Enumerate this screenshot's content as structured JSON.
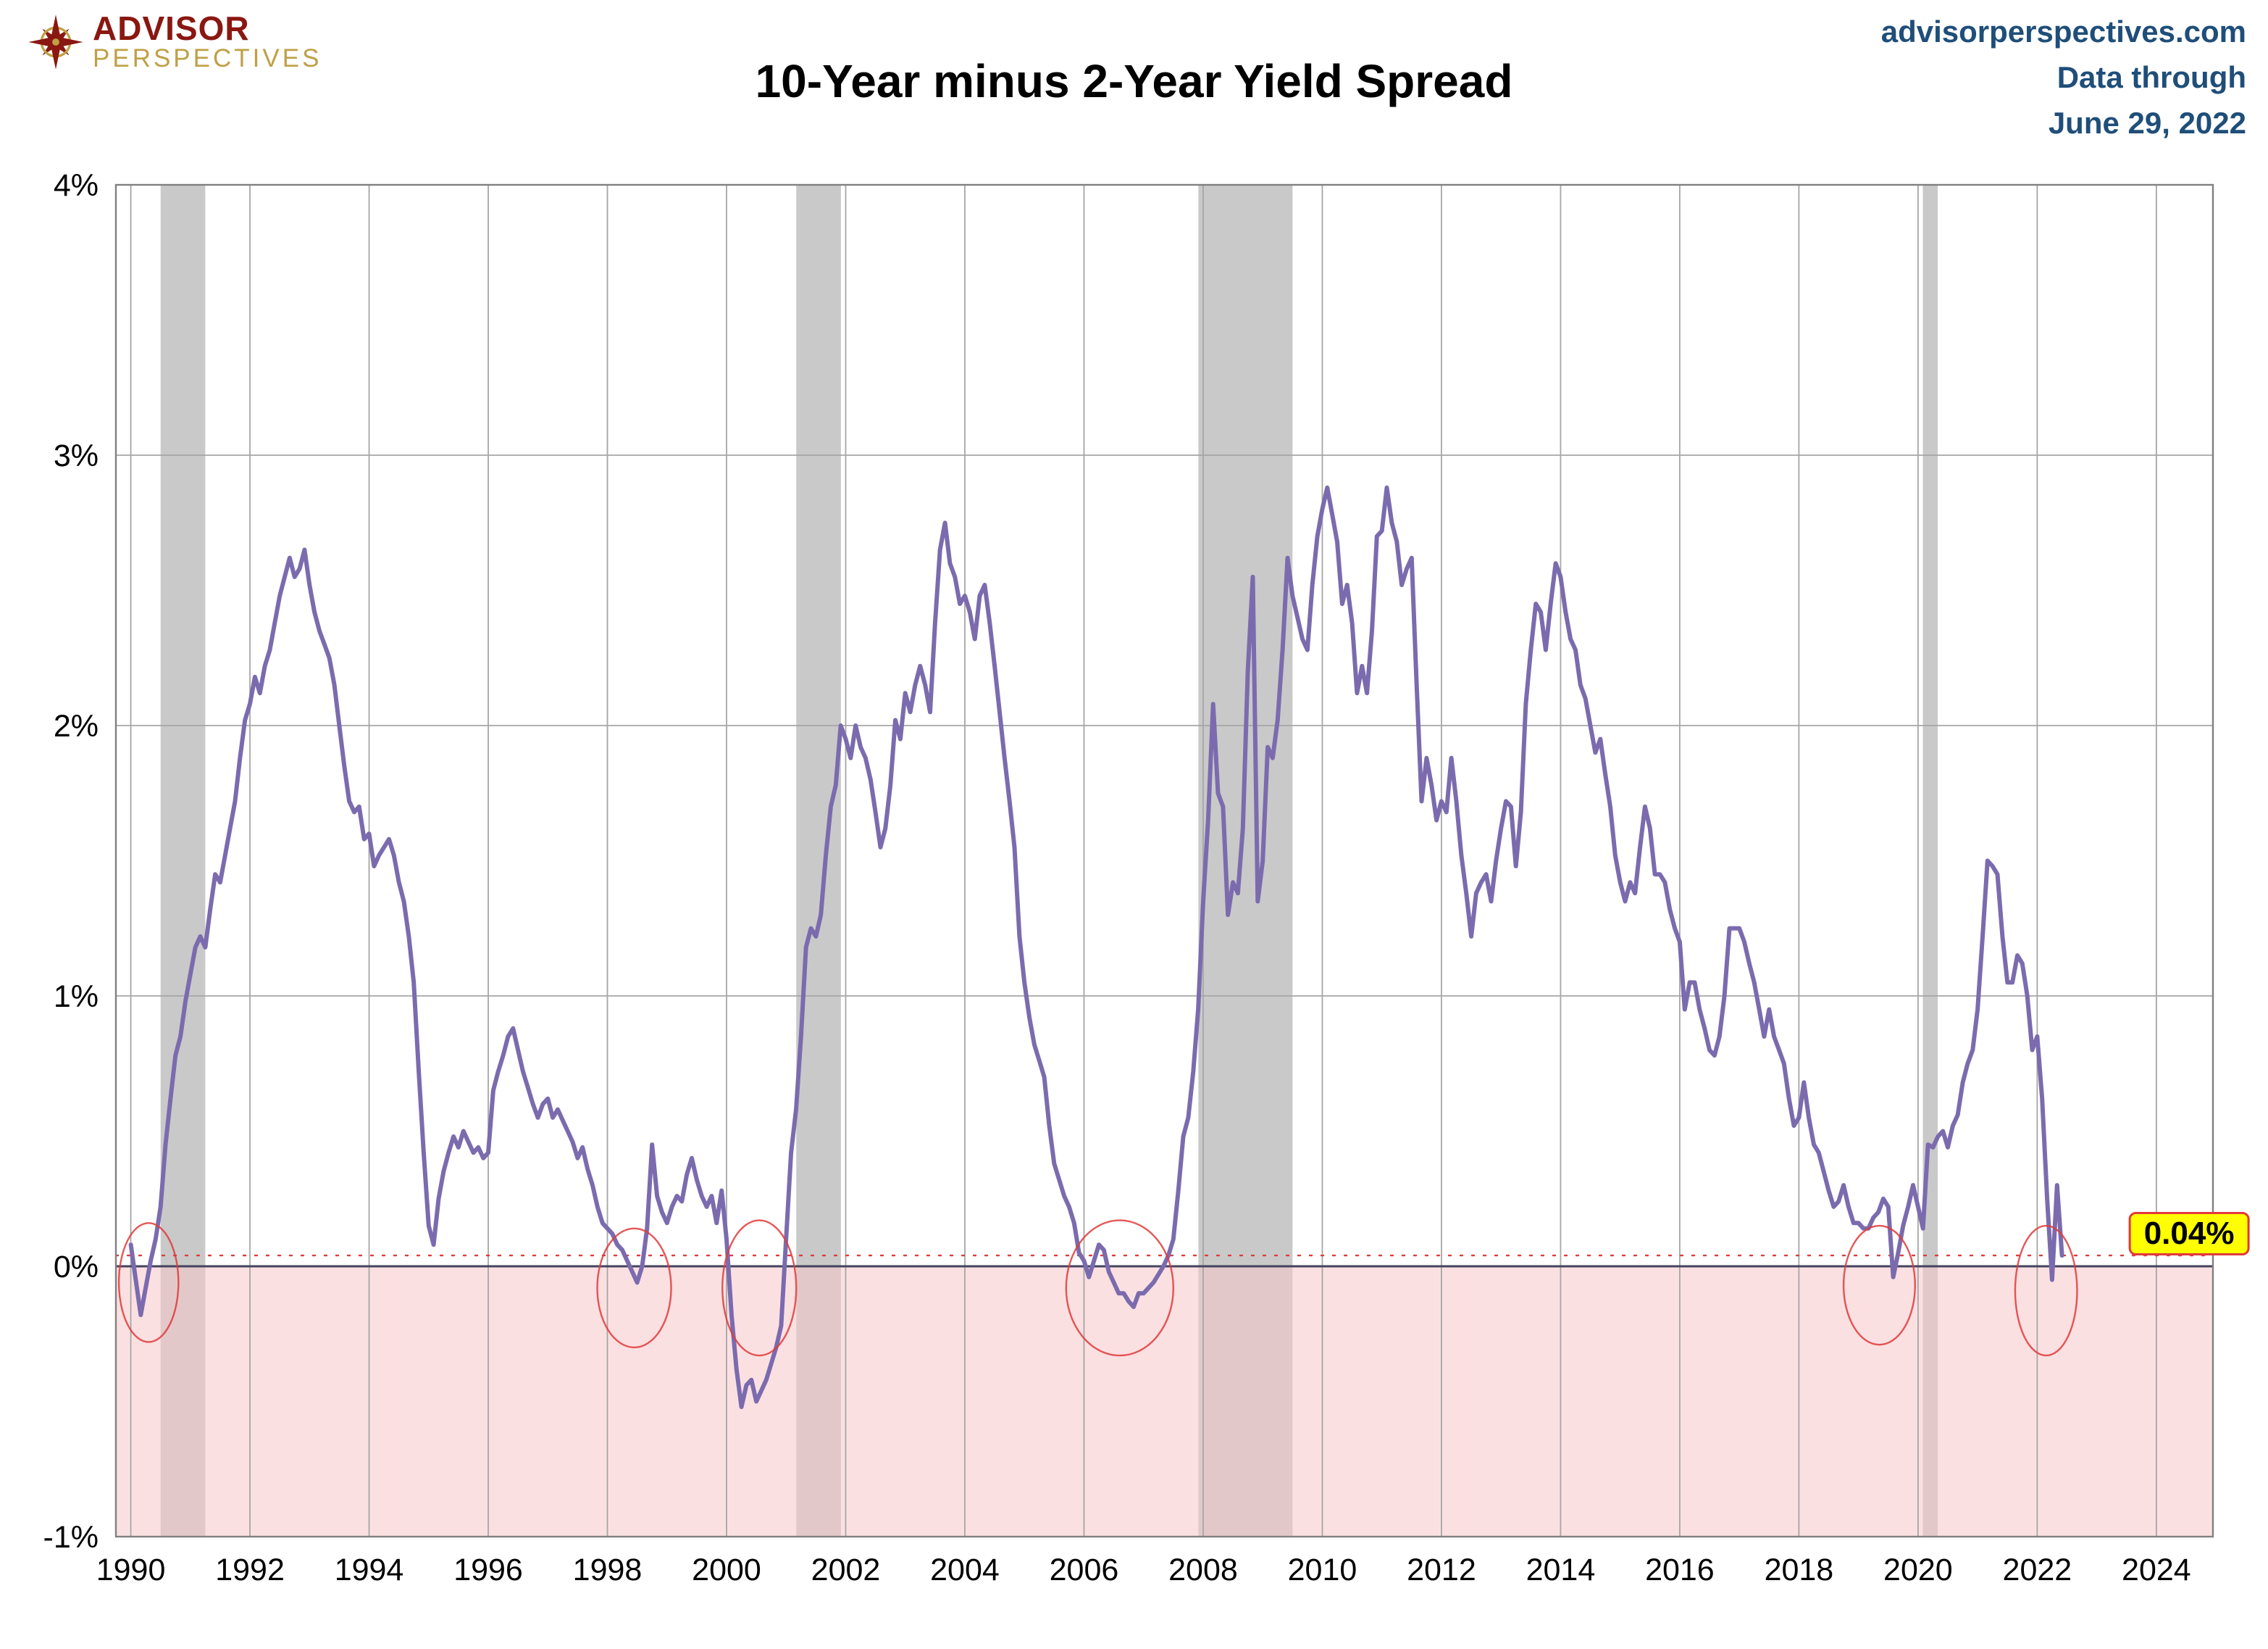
{
  "header": {
    "logo_line1": "ADVISOR",
    "logo_line2": "PERSPECTIVES",
    "title": "10-Year minus 2-Year Yield Spread",
    "site": "advisorperspectives.com",
    "data_through_label": "Data through",
    "data_through_date": "June 29, 2022"
  },
  "colors": {
    "line": "#7B6BAE",
    "negative_fill": "#F7C6CB",
    "recession": "#C9C9C9",
    "annotation_red": "#E03A3A",
    "callout_bg": "#FFFF00",
    "header_blue": "#1F4E79",
    "logo_maroon": "#8A1711",
    "logo_gold": "#BFA046",
    "grid": "#A6A6A6",
    "frame": "#808080",
    "zero_line": "#44445E",
    "tick_text": "#000000"
  },
  "chart_data": {
    "type": "line",
    "title": "10-Year minus 2-Year Yield Spread",
    "xlabel": "",
    "ylabel": "",
    "xlim": [
      1989.75,
      2024.95
    ],
    "ylim": [
      -1,
      4
    ],
    "grid": true,
    "xticks": [
      1990,
      1992,
      1994,
      1996,
      1998,
      2000,
      2002,
      2004,
      2006,
      2008,
      2010,
      2012,
      2014,
      2016,
      2018,
      2020,
      2022,
      2024
    ],
    "yticks": [
      {
        "value": 4,
        "label": "4%"
      },
      {
        "value": 3,
        "label": "3%"
      },
      {
        "value": 2,
        "label": "2%"
      },
      {
        "value": 1,
        "label": "1%"
      },
      {
        "value": 0,
        "label": "0%"
      },
      {
        "value": -1,
        "label": "-1%"
      }
    ],
    "zero_line_value": 0,
    "reference_line": {
      "value": 0.04,
      "style": "dotted"
    },
    "negative_region": {
      "from": -1,
      "to": 0
    },
    "recession_bands": [
      [
        1990.5,
        1991.25
      ],
      [
        2001.17,
        2001.92
      ],
      [
        2007.92,
        2009.5
      ],
      [
        2020.08,
        2020.33
      ]
    ],
    "inversion_circles": [
      {
        "cx": 1990.3,
        "cy": -0.06,
        "rx": 0.5,
        "ry": 0.22
      },
      {
        "cx": 1998.45,
        "cy": -0.08,
        "rx": 0.62,
        "ry": 0.22
      },
      {
        "cx": 2000.55,
        "cy": -0.08,
        "rx": 0.62,
        "ry": 0.25
      },
      {
        "cx": 2006.6,
        "cy": -0.08,
        "rx": 0.9,
        "ry": 0.25
      },
      {
        "cx": 2019.35,
        "cy": -0.07,
        "rx": 0.6,
        "ry": 0.22
      },
      {
        "cx": 2022.15,
        "cy": -0.09,
        "rx": 0.52,
        "ry": 0.24
      }
    ],
    "callout": {
      "text": "0.04%",
      "x": 2024.55,
      "y": 0.12
    },
    "last_value": 0.04,
    "series": [
      {
        "name": "10-Year minus 2-Year Treasury Yield Spread",
        "start_year": 1990,
        "points_per_year": 12,
        "values": [
          0.08,
          -0.05,
          -0.18,
          -0.08,
          0.02,
          0.1,
          0.22,
          0.45,
          0.62,
          0.78,
          0.85,
          0.98,
          1.08,
          1.18,
          1.22,
          1.18,
          1.32,
          1.45,
          1.42,
          1.52,
          1.62,
          1.72,
          1.88,
          2.02,
          2.08,
          2.18,
          2.12,
          2.22,
          2.28,
          2.38,
          2.48,
          2.55,
          2.62,
          2.55,
          2.58,
          2.65,
          2.52,
          2.42,
          2.35,
          2.3,
          2.25,
          2.15,
          2.0,
          1.85,
          1.72,
          1.68,
          1.7,
          1.58,
          1.6,
          1.48,
          1.52,
          1.55,
          1.58,
          1.52,
          1.42,
          1.35,
          1.22,
          1.05,
          0.72,
          0.42,
          0.15,
          0.08,
          0.25,
          0.35,
          0.42,
          0.48,
          0.44,
          0.5,
          0.46,
          0.42,
          0.44,
          0.4,
          0.42,
          0.65,
          0.72,
          0.78,
          0.85,
          0.88,
          0.8,
          0.72,
          0.66,
          0.6,
          0.55,
          0.6,
          0.62,
          0.55,
          0.58,
          0.54,
          0.5,
          0.46,
          0.4,
          0.44,
          0.36,
          0.3,
          0.22,
          0.16,
          0.14,
          0.12,
          0.08,
          0.06,
          0.02,
          -0.02,
          -0.06,
          0.0,
          0.14,
          0.45,
          0.26,
          0.2,
          0.16,
          0.22,
          0.26,
          0.24,
          0.34,
          0.4,
          0.32,
          0.26,
          0.22,
          0.26,
          0.16,
          0.28,
          0.1,
          -0.18,
          -0.38,
          -0.52,
          -0.44,
          -0.42,
          -0.5,
          -0.46,
          -0.42,
          -0.36,
          -0.3,
          -0.22,
          0.1,
          0.42,
          0.58,
          0.85,
          1.18,
          1.25,
          1.22,
          1.3,
          1.52,
          1.7,
          1.78,
          2.0,
          1.95,
          1.88,
          2.0,
          1.92,
          1.88,
          1.8,
          1.68,
          1.55,
          1.62,
          1.78,
          2.02,
          1.95,
          2.12,
          2.05,
          2.15,
          2.22,
          2.15,
          2.05,
          2.38,
          2.65,
          2.75,
          2.6,
          2.55,
          2.45,
          2.48,
          2.42,
          2.32,
          2.48,
          2.52,
          2.38,
          2.22,
          2.05,
          1.88,
          1.72,
          1.55,
          1.22,
          1.05,
          0.92,
          0.82,
          0.76,
          0.7,
          0.52,
          0.38,
          0.32,
          0.26,
          0.22,
          0.16,
          0.05,
          0.02,
          -0.04,
          0.02,
          0.08,
          0.06,
          -0.02,
          -0.06,
          -0.1,
          -0.1,
          -0.13,
          -0.15,
          -0.1,
          -0.1,
          -0.08,
          -0.06,
          -0.03,
          0.0,
          0.04,
          0.1,
          0.28,
          0.48,
          0.55,
          0.72,
          0.95,
          1.35,
          1.65,
          2.08,
          1.75,
          1.7,
          1.3,
          1.42,
          1.38,
          1.62,
          2.2,
          2.55,
          1.35,
          1.5,
          1.92,
          1.88,
          2.02,
          2.28,
          2.62,
          2.48,
          2.4,
          2.32,
          2.28,
          2.52,
          2.7,
          2.8,
          2.88,
          2.78,
          2.68,
          2.45,
          2.52,
          2.38,
          2.12,
          2.22,
          2.12,
          2.35,
          2.7,
          2.72,
          2.88,
          2.75,
          2.68,
          2.52,
          2.58,
          2.62,
          2.15,
          1.72,
          1.88,
          1.78,
          1.65,
          1.72,
          1.68,
          1.88,
          1.72,
          1.52,
          1.38,
          1.22,
          1.38,
          1.42,
          1.45,
          1.35,
          1.5,
          1.62,
          1.72,
          1.7,
          1.48,
          1.68,
          2.08,
          2.28,
          2.45,
          2.42,
          2.28,
          2.45,
          2.6,
          2.55,
          2.42,
          2.32,
          2.28,
          2.15,
          2.1,
          2.0,
          1.9,
          1.95,
          1.82,
          1.7,
          1.52,
          1.42,
          1.35,
          1.42,
          1.38,
          1.55,
          1.7,
          1.62,
          1.45,
          1.45,
          1.42,
          1.32,
          1.25,
          1.2,
          0.95,
          1.05,
          1.05,
          0.95,
          0.88,
          0.8,
          0.78,
          0.85,
          1.0,
          1.25,
          1.25,
          1.25,
          1.2,
          1.12,
          1.05,
          0.95,
          0.85,
          0.95,
          0.85,
          0.8,
          0.75,
          0.62,
          0.52,
          0.55,
          0.68,
          0.55,
          0.45,
          0.42,
          0.35,
          0.28,
          0.22,
          0.24,
          0.3,
          0.22,
          0.16,
          0.16,
          0.14,
          0.14,
          0.18,
          0.2,
          0.25,
          0.22,
          -0.04,
          0.05,
          0.15,
          0.22,
          0.3,
          0.22,
          0.14,
          0.45,
          0.44,
          0.48,
          0.5,
          0.44,
          0.52,
          0.56,
          0.68,
          0.75,
          0.8,
          0.95,
          1.22,
          1.5,
          1.48,
          1.45,
          1.22,
          1.05,
          1.05,
          1.15,
          1.12,
          1.0,
          0.8,
          0.85,
          0.62,
          0.25,
          -0.05,
          0.3,
          0.04
        ]
      }
    ]
  }
}
